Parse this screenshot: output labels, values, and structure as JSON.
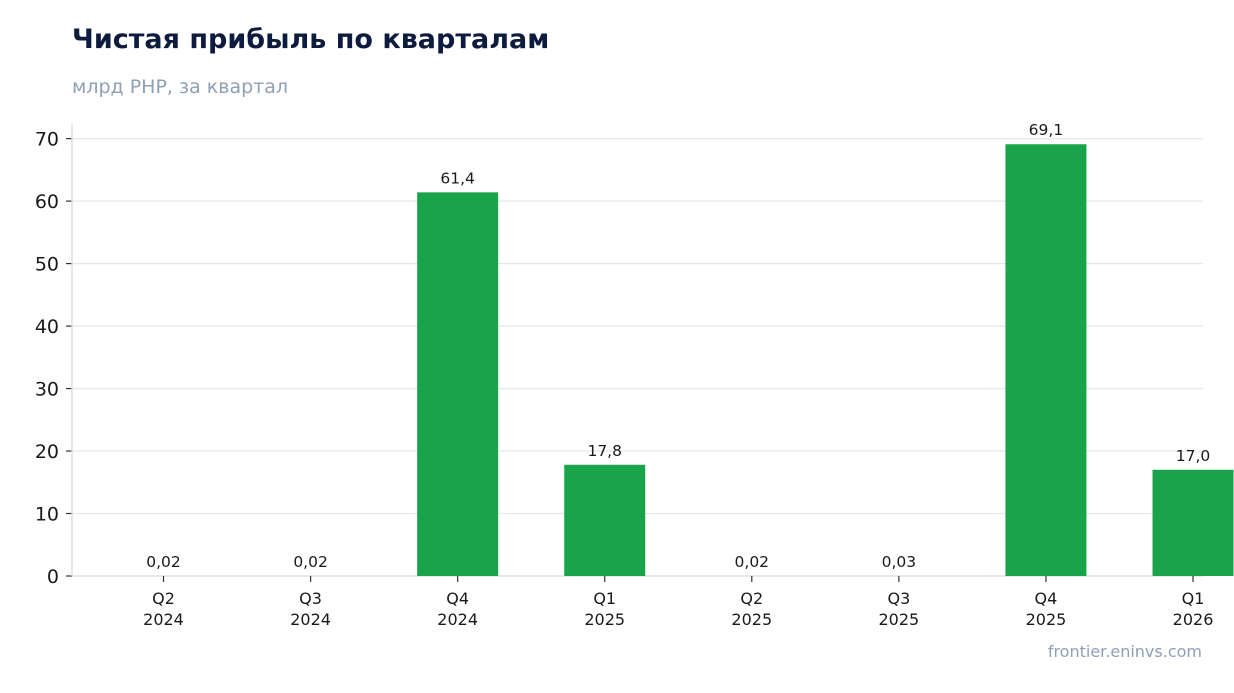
{
  "chart_data": {
    "type": "bar",
    "title": "Чистая прибыль по кварталам",
    "subtitle": "млрд РНР, за квартал",
    "source": "frontier.eninvs.com",
    "categories": [
      [
        "Q2",
        "2024"
      ],
      [
        "Q3",
        "2024"
      ],
      [
        "Q4",
        "2024"
      ],
      [
        "Q1",
        "2025"
      ],
      [
        "Q2",
        "2025"
      ],
      [
        "Q3",
        "2025"
      ],
      [
        "Q4",
        "2025"
      ],
      [
        "Q1",
        "2026"
      ]
    ],
    "values": [
      0.02,
      0.02,
      61.4,
      17.8,
      0.02,
      0.03,
      69.1,
      17.0
    ],
    "value_labels": [
      "0,02",
      "0,02",
      "61,4",
      "17,8",
      "0,02",
      "0,03",
      "69,1",
      "17,0"
    ],
    "ylim": [
      0,
      72.5
    ],
    "yticks": [
      0,
      10,
      20,
      30,
      40,
      50,
      60,
      70
    ],
    "grid": true,
    "bar_color": "#19a34a",
    "grid_color": "#e3e7ee"
  }
}
